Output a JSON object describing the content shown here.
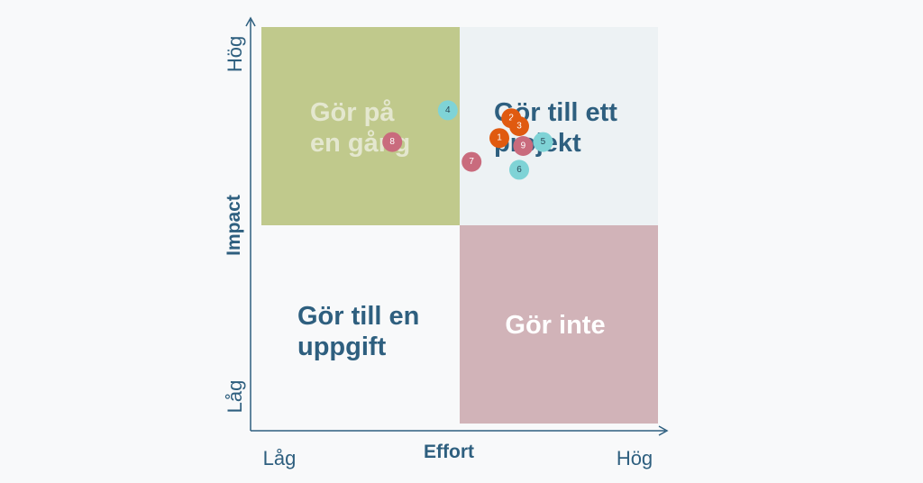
{
  "chart_data": {
    "type": "scatter",
    "xlabel": "Effort",
    "ylabel": "Impact",
    "x_tick_labels": {
      "low": "Låg",
      "high": "Hög"
    },
    "y_tick_labels": {
      "low": "Låg",
      "high": "Hög"
    },
    "xlim": [
      0,
      100
    ],
    "ylim": [
      0,
      100
    ],
    "grid": false,
    "quadrants": [
      {
        "id": "top-left",
        "label": [
          "Gör på",
          "en gång"
        ],
        "fill": "#c0c98c",
        "text_color": "#e4e7cf"
      },
      {
        "id": "top-right",
        "label": [
          "Gör till ett",
          "projekt"
        ],
        "fill": "#edf2f4",
        "text_color": "#2e5f7f"
      },
      {
        "id": "bottom-left",
        "label": [
          "Gör till en",
          "uppgift"
        ],
        "fill": "#f8f9fa",
        "text_color": "#2e5f7f"
      },
      {
        "id": "bottom-right",
        "label": [
          "Gör inte"
        ],
        "fill": "#d1b3b8",
        "text_color": "#ffffff"
      }
    ],
    "points": [
      {
        "label": "4",
        "x": 47,
        "y": 79,
        "color": "#7fd3d6"
      },
      {
        "label": "8",
        "x": 33,
        "y": 71,
        "color": "#c96b7d"
      },
      {
        "label": "7",
        "x": 53,
        "y": 66,
        "color": "#c96b7d"
      },
      {
        "label": "2",
        "x": 63,
        "y": 77,
        "color": "#e05a10"
      },
      {
        "label": "3",
        "x": 65,
        "y": 75,
        "color": "#e05a10"
      },
      {
        "label": "1",
        "x": 60,
        "y": 72,
        "color": "#e05a10"
      },
      {
        "label": "5",
        "x": 71,
        "y": 71,
        "color": "#7fd3d6"
      },
      {
        "label": "9",
        "x": 66,
        "y": 70,
        "color": "#c96b7d"
      },
      {
        "label": "6",
        "x": 65,
        "y": 64,
        "color": "#7fd3d6"
      }
    ]
  }
}
